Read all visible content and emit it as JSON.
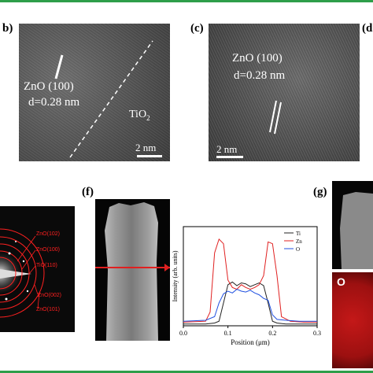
{
  "panels": {
    "b": {
      "letter": "b)",
      "label_line1": "ZnO (100)",
      "label_line2": "d=0.28 nm",
      "interface_label": "TiO",
      "interface_sub": "2",
      "scale": "2 nm"
    },
    "c": {
      "letter": "(c)",
      "label_line1": "ZnO (100)",
      "label_line2": "d=0.28 nm",
      "scale": "2 nm"
    },
    "d": {
      "letter": "(d"
    },
    "saed": {
      "rings": [
        "ZnO(102)",
        "ZnO(100)",
        "TiO(110)",
        "ZnO(002)",
        "ZnO(101)"
      ]
    },
    "f": {
      "letter": "(f)",
      "chart_data": {
        "type": "line",
        "xlabel": "Position (μm)",
        "ylabel": "Intensity (arb. units)",
        "xlim": [
          0,
          0.3
        ],
        "x_ticks": [
          "0.0",
          "0.1",
          "0.2",
          "0.3"
        ],
        "legend_position": "top-right",
        "series": [
          {
            "name": "Ti",
            "color": "#222222",
            "x": [
              0.0,
              0.05,
              0.07,
              0.08,
              0.09,
              0.1,
              0.11,
              0.12,
              0.13,
              0.14,
              0.15,
              0.16,
              0.17,
              0.18,
              0.19,
              0.2,
              0.21,
              0.23,
              0.26,
              0.3
            ],
            "y": [
              0.02,
              0.02,
              0.03,
              0.05,
              0.25,
              0.45,
              0.48,
              0.44,
              0.47,
              0.46,
              0.43,
              0.45,
              0.47,
              0.44,
              0.25,
              0.05,
              0.03,
              0.02,
              0.02,
              0.02
            ]
          },
          {
            "name": "Zn",
            "color": "#e02020",
            "x": [
              0.0,
              0.05,
              0.06,
              0.07,
              0.08,
              0.09,
              0.1,
              0.11,
              0.12,
              0.13,
              0.14,
              0.15,
              0.16,
              0.17,
              0.18,
              0.19,
              0.2,
              0.21,
              0.22,
              0.24,
              0.27,
              0.3
            ],
            "y": [
              0.04,
              0.05,
              0.15,
              0.8,
              0.95,
              0.9,
              0.5,
              0.42,
              0.4,
              0.45,
              0.42,
              0.4,
              0.42,
              0.45,
              0.55,
              0.92,
              0.9,
              0.55,
              0.1,
              0.05,
              0.04,
              0.04
            ]
          },
          {
            "name": "O",
            "color": "#2050e0",
            "x": [
              0.0,
              0.05,
              0.07,
              0.08,
              0.09,
              0.1,
              0.11,
              0.12,
              0.13,
              0.14,
              0.15,
              0.16,
              0.17,
              0.18,
              0.19,
              0.2,
              0.21,
              0.23,
              0.26,
              0.3
            ],
            "y": [
              0.05,
              0.06,
              0.1,
              0.25,
              0.35,
              0.38,
              0.36,
              0.4,
              0.38,
              0.37,
              0.39,
              0.36,
              0.34,
              0.3,
              0.28,
              0.12,
              0.07,
              0.06,
              0.05,
              0.05
            ]
          }
        ]
      }
    },
    "g": {
      "letter": "(g)",
      "map_label": "O"
    }
  },
  "colors": {
    "accent_green": "#2e9e4a",
    "saed_red": "#ff2020",
    "map_red": "#c41818"
  }
}
